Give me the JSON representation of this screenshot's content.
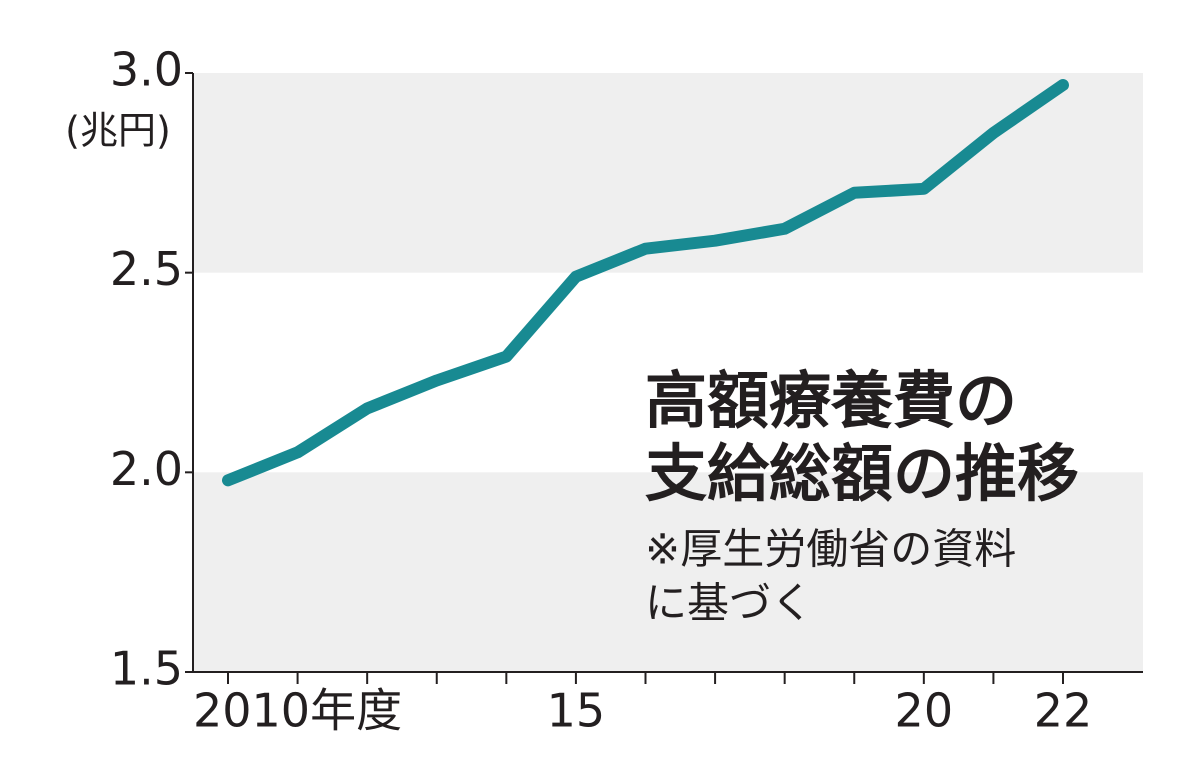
{
  "chart_data": {
    "type": "line",
    "title": [
      "高額療養費の",
      "支給総額の推移"
    ],
    "note": [
      "※厚生労働省の資料",
      "に基づく"
    ],
    "y_label": "(兆円)",
    "categories": [
      "2010年度",
      null,
      null,
      null,
      null,
      "15",
      null,
      null,
      null,
      null,
      "20",
      null,
      "22"
    ],
    "series": [
      {
        "name": "高額療養費の支給総額",
        "color": "#188a92",
        "values": [
          1.98,
          2.05,
          2.16,
          2.23,
          2.29,
          2.49,
          2.56,
          2.58,
          2.61,
          2.7,
          2.71,
          2.85,
          2.97
        ]
      }
    ],
    "ylim": [
      1.5,
      3.0
    ],
    "yticks": [
      1.5,
      {
        "value": 2,
        "label": "2.0"
      },
      2.5,
      {
        "value": 3,
        "label": "3.0"
      }
    ],
    "grid": true,
    "band_color": "#efefef"
  }
}
